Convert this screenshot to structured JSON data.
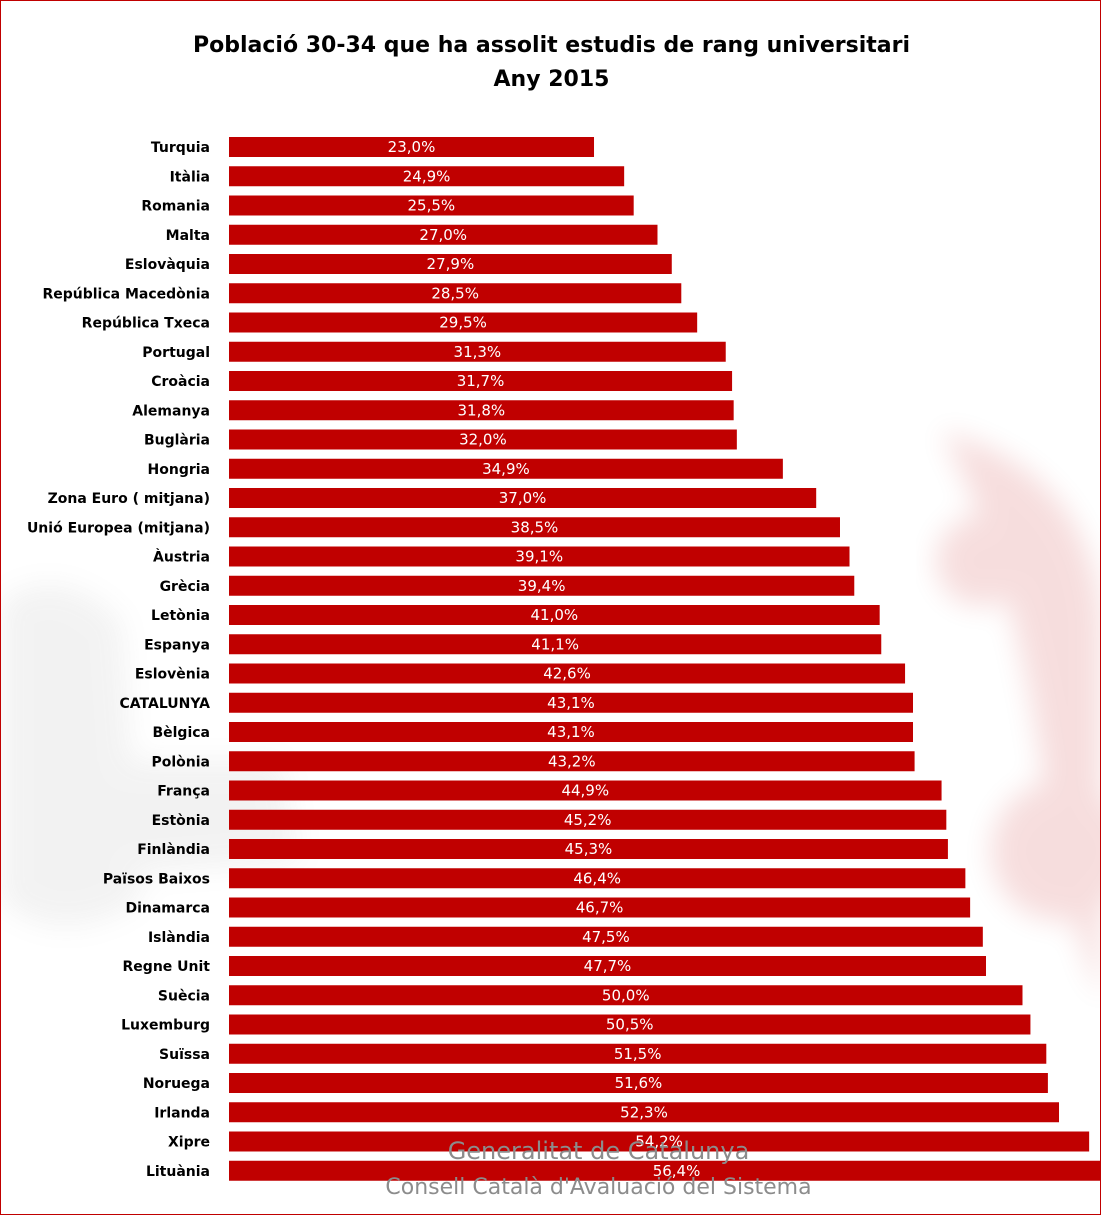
{
  "chart_data": {
    "type": "bar",
    "orientation": "horizontal",
    "title": "Població 30-34 que ha assolit estudis de rang universitari",
    "subtitle": "Any 2015",
    "xlabel": "",
    "ylabel": "",
    "xlim": [
      0,
      56.4
    ],
    "grid": false,
    "legend": "none",
    "bar_color": "#c00000",
    "label_color": "#ffffff",
    "categories": [
      "Turquia",
      "Itàlia",
      "Romania",
      "Malta",
      "Eslovàquia",
      "República Macedònia",
      "República Txeca",
      "Portugal",
      "Croàcia",
      "Alemanya",
      "Buglària",
      "Hongria",
      "Zona Euro ( mitjana)",
      "Unió Europea (mitjana)",
      "Àustria",
      "Grècia",
      "Letònia",
      "Espanya",
      "Eslovènia",
      "CATALUNYA",
      "Bèlgica",
      "Polònia",
      "França",
      "Estònia",
      "Finlàndia",
      "Països Baixos",
      "Dinamarca",
      "Islàndia",
      "Regne Unit",
      "Suècia",
      "Luxemburg",
      "Suïssa",
      "Noruega",
      "Irlanda",
      "Xipre",
      "Lituània"
    ],
    "values": [
      23.0,
      24.9,
      25.5,
      27.0,
      27.9,
      28.5,
      29.5,
      31.3,
      31.7,
      31.8,
      32.0,
      34.9,
      37.0,
      38.5,
      39.1,
      39.4,
      41.0,
      41.1,
      42.6,
      43.1,
      43.1,
      43.2,
      44.9,
      45.2,
      45.3,
      46.4,
      46.7,
      47.5,
      47.7,
      50.0,
      50.5,
      51.5,
      51.6,
      52.3,
      54.2,
      56.4
    ],
    "data_labels": [
      "23,0%",
      "24,9%",
      "25,5%",
      "27,0%",
      "27,9%",
      "28,5%",
      "29,5%",
      "31,3%",
      "31,7%",
      "31,8%",
      "32,0%",
      "34,9%",
      "37,0%",
      "38,5%",
      "39,1%",
      "39,4%",
      "41,0%",
      "41,1%",
      "42,6%",
      "43,1%",
      "43,1%",
      "43,2%",
      "44,9%",
      "45,2%",
      "45,3%",
      "46,4%",
      "46,7%",
      "47,5%",
      "47,7%",
      "50,0%",
      "50,5%",
      "51,5%",
      "51,6%",
      "52,3%",
      "54,2%",
      "56,4%"
    ]
  },
  "footer": {
    "line1": "Generalitat de Catalunya",
    "line2": "Consell Català d'Avaluació del Sistema",
    "color": "#8c8c8c"
  },
  "watermark_icon": "generalitat-logo-icon"
}
